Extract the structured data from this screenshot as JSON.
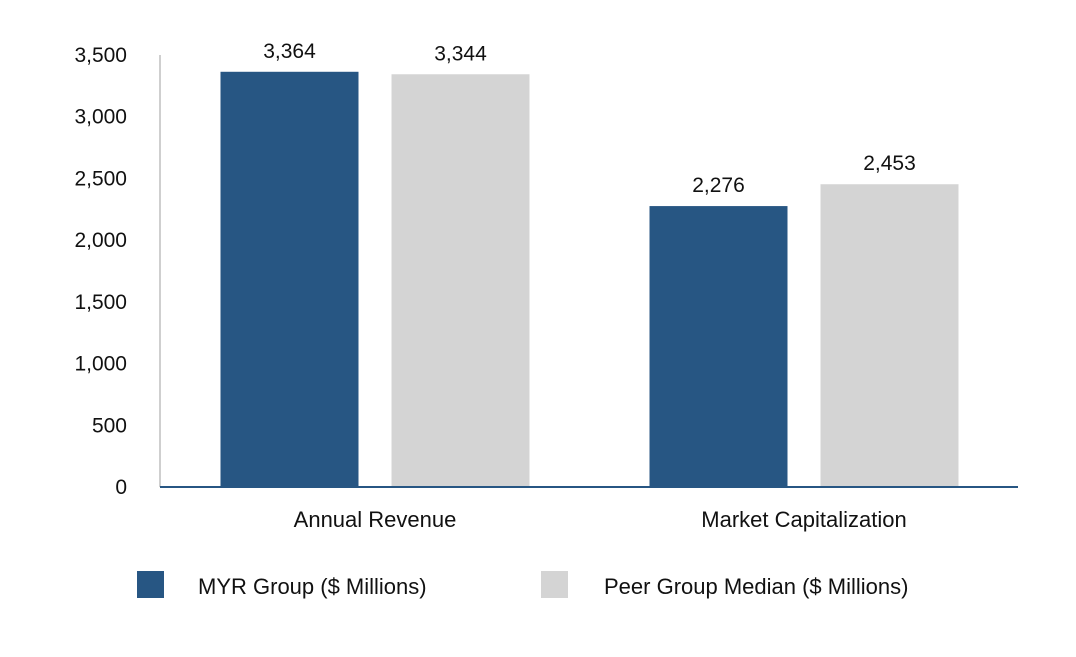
{
  "chart_data": {
    "type": "bar",
    "title": "",
    "xlabel": "",
    "ylabel": "",
    "ylim": [
      0,
      3500
    ],
    "yticks": [
      0,
      500,
      1000,
      1500,
      2000,
      2500,
      3000,
      3500
    ],
    "ytick_labels": [
      "0",
      "500",
      "1,000",
      "1,500",
      "2,000",
      "2,500",
      "3,000",
      "3,500"
    ],
    "categories": [
      "Annual Revenue",
      "Market Capitalization"
    ],
    "series": [
      {
        "name": "MYR Group ($ Millions)",
        "color": "#275683",
        "values": [
          3364,
          2276
        ],
        "value_labels": [
          "3,364",
          "2,276"
        ]
      },
      {
        "name": "Peer Group Median ($ Millions)",
        "color": "#d4d4d4",
        "values": [
          3344,
          2453
        ],
        "value_labels": [
          "3,344",
          "2,453"
        ]
      }
    ],
    "legend_position": "bottom",
    "grid": false,
    "axis_color": "#275683"
  }
}
